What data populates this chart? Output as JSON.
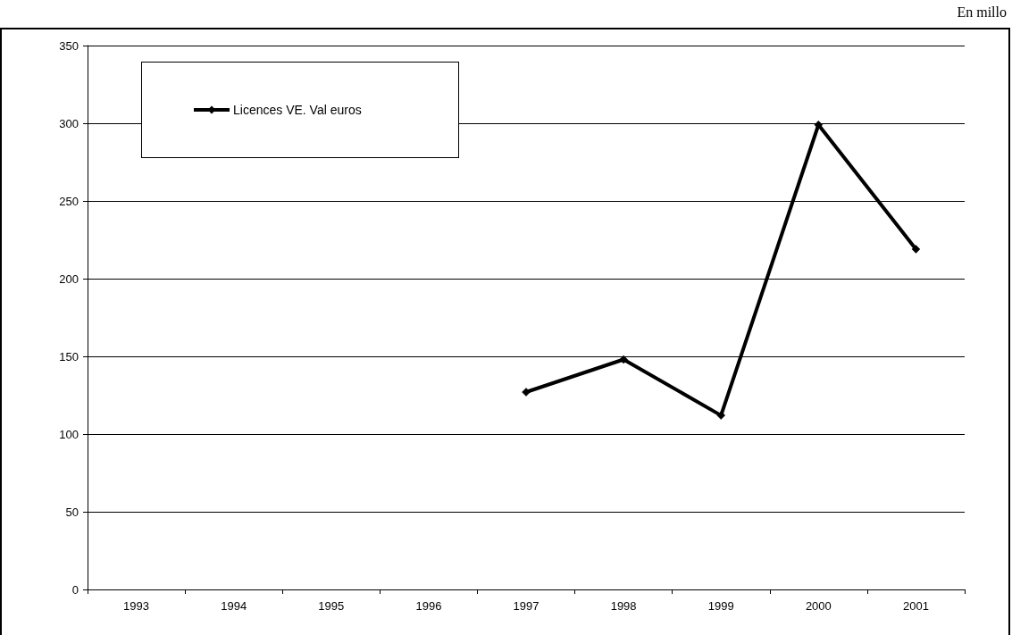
{
  "chart_data": {
    "type": "line",
    "categories": [
      "1993",
      "1994",
      "1995",
      "1996",
      "1997",
      "1998",
      "1999",
      "2000",
      "2001"
    ],
    "series": [
      {
        "name": "Licences VE. Val euros",
        "color": "#000000",
        "values": [
          null,
          null,
          null,
          null,
          127,
          148,
          112,
          299,
          219
        ]
      }
    ],
    "ylim": [
      0,
      350
    ],
    "yticks": [
      0,
      50,
      100,
      150,
      200,
      250,
      300,
      350
    ],
    "grid": "y",
    "legend": "top left",
    "marker": "diamond",
    "line_style": "solid",
    "annotations": [
      "En millo"
    ]
  }
}
